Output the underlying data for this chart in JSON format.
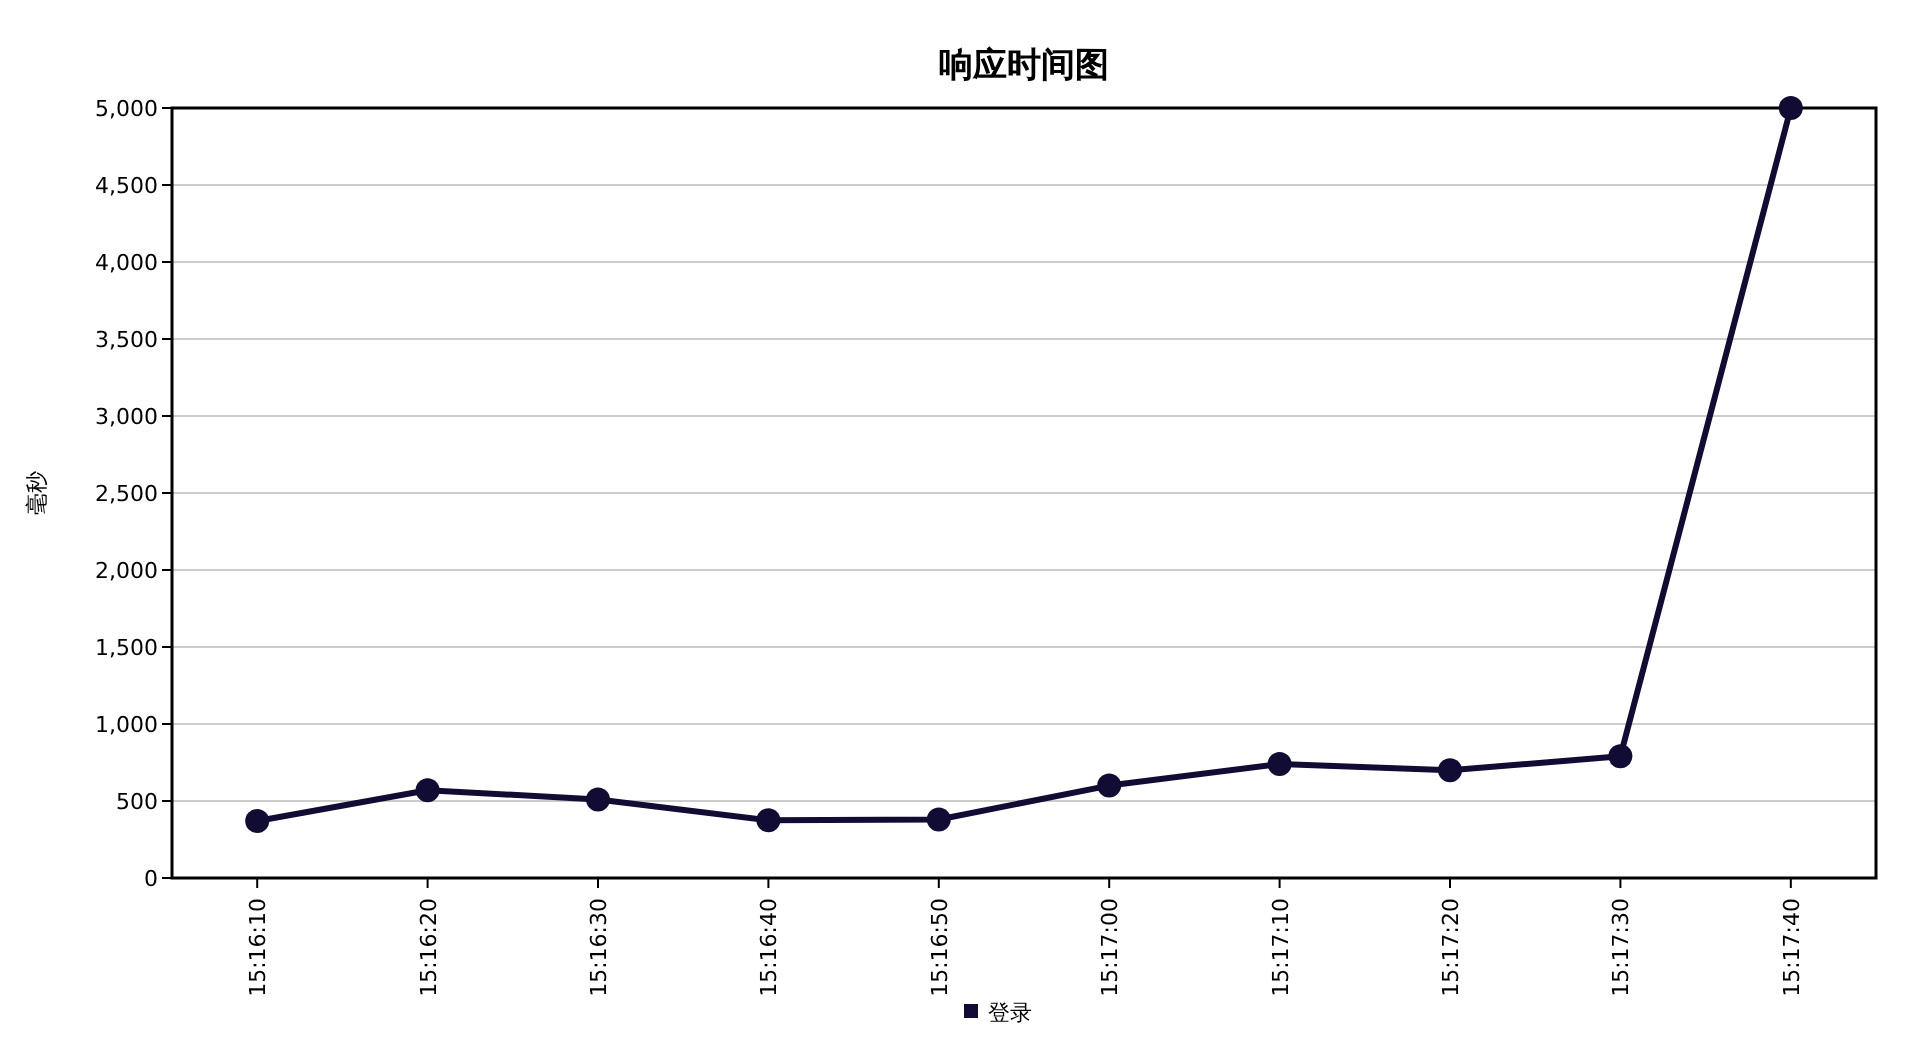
{
  "chart_data": {
    "type": "line",
    "title": "响应时间图",
    "ylabel": "毫秒",
    "categories": [
      "15:16:10",
      "15:16:20",
      "15:16:30",
      "15:16:40",
      "15:16:50",
      "15:17:00",
      "15:17:10",
      "15:17:20",
      "15:17:30",
      "15:17:40"
    ],
    "series": [
      {
        "name": "登录",
        "color": "#100c33",
        "values": [
          370,
          570,
          510,
          375,
          380,
          600,
          740,
          700,
          790,
          5000
        ]
      }
    ],
    "ylim": [
      0,
      5000
    ],
    "yticks": [
      0,
      500,
      {
        "value": 1000,
        "label": "1,000"
      },
      {
        "value": 1500,
        "label": "1,500"
      },
      {
        "value": 2000,
        "label": "2,000"
      },
      {
        "value": 2500,
        "label": "2,500"
      },
      {
        "value": 3000,
        "label": "3,000"
      },
      {
        "value": 3500,
        "label": "3,500"
      },
      {
        "value": 4000,
        "label": "4,000"
      },
      {
        "value": 4500,
        "label": "4,500"
      },
      {
        "value": 5000,
        "label": "5,000"
      }
    ],
    "grid": "y",
    "legend": "bottom",
    "marker": "circle",
    "line_style": "solid"
  }
}
